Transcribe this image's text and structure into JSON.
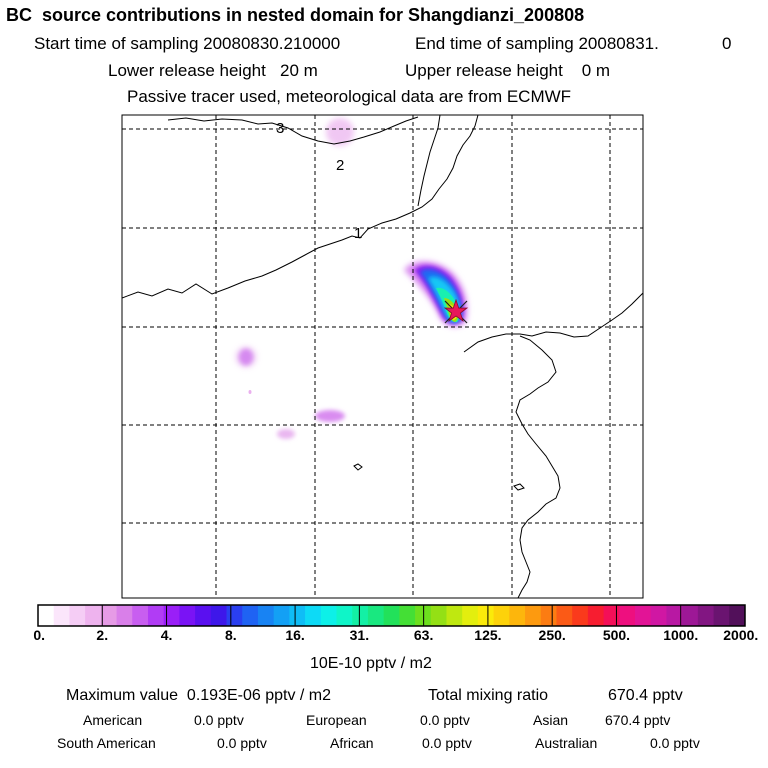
{
  "header": {
    "title": "BC  source contributions in nested domain for Shangdianzi_200808",
    "start_label": "Start time of sampling 20080830.210000",
    "end_label": "End time of sampling 20080831.",
    "end_value": "0",
    "lower_release": "Lower release height   20 m",
    "upper_release": "Upper release height    0 m",
    "tracer_note": "Passive tracer used, meteorological data are from ECMWF"
  },
  "map": {
    "contour_labels": [
      "3",
      "2",
      "1"
    ],
    "receptor_marker": "receptor-star"
  },
  "colorbar": {
    "tick_labels": [
      "0.",
      "2.",
      "4.",
      "8.",
      "16.",
      "31.",
      "63.",
      "125.",
      "250.",
      "500.",
      "1000.",
      "2000."
    ],
    "units": "10E-10 pptv / m2",
    "colors": [
      "#ffffff",
      "#fbe6fb",
      "#f5cdf5",
      "#eeb3ee",
      "#e69be6",
      "#d97fe9",
      "#c85ef0",
      "#b13cf5",
      "#9a1ff7",
      "#7a13f5",
      "#5a10f0",
      "#3e17ea",
      "#2a3ff0",
      "#1f63f3",
      "#1883f3",
      "#13a0f5",
      "#0fbdf6",
      "#0ddaf6",
      "#0df0e8",
      "#0ff5c8",
      "#13f0a5",
      "#19e880",
      "#22e15a",
      "#44df35",
      "#6ddf1e",
      "#94e015",
      "#bfe810",
      "#e3ee0e",
      "#fbea0a",
      "#fdd20a",
      "#fdb60c",
      "#fd9a0f",
      "#fc7c12",
      "#fb5a16",
      "#fa3a1c",
      "#f71d30",
      "#f40f58",
      "#ee0f7f",
      "#e21496",
      "#d017a3",
      "#b818a3",
      "#9d1896",
      "#821682",
      "#6a1470",
      "#52105a"
    ]
  },
  "stats": {
    "max_label": "Maximum value  0.193E-06 pptv / m2",
    "total_label": "Total mixing ratio",
    "total_value": "670.4 pptv",
    "american_label": "American",
    "american_value": "0.0 pptv",
    "european_label": "European",
    "european_value": "0.0 pptv",
    "asian_label": "Asian",
    "asian_value": "670.4 pptv",
    "south_american_label": "South American",
    "south_american_value": "0.0 pptv",
    "african_label": "African",
    "african_value": "0.0 pptv",
    "australian_label": "Australian",
    "australian_value": "0.0 pptv"
  }
}
